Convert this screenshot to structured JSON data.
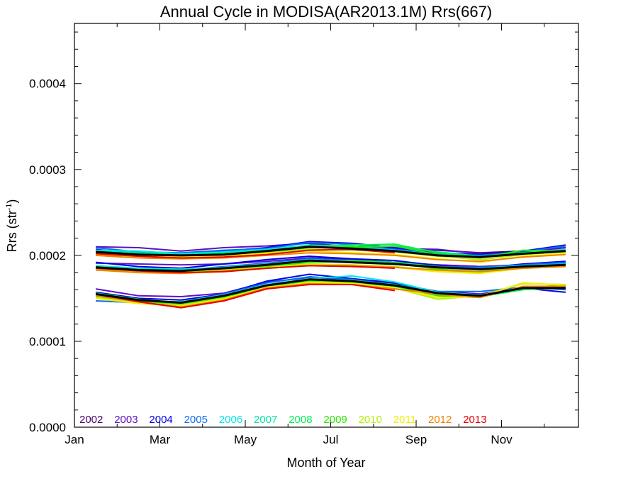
{
  "chart_data": {
    "type": "line",
    "title": "Annual Cycle in MODISA(AR2013.1M) Rrs(667)",
    "xlabel": "Month of Year",
    "ylabel_main": "Rrs (str",
    "ylabel_sup": "-1",
    "ylabel_close": ")",
    "xlim": [
      1,
      12.8
    ],
    "ylim": [
      0,
      0.00047
    ],
    "x_ticks": [
      {
        "x": 1,
        "label": "Jan"
      },
      {
        "x": 3,
        "label": "Mar"
      },
      {
        "x": 5,
        "label": "May"
      },
      {
        "x": 7,
        "label": "Jul"
      },
      {
        "x": 9,
        "label": "Sep"
      },
      {
        "x": 11,
        "label": "Nov"
      }
    ],
    "y_ticks": [
      {
        "y": 0.0,
        "label": "0.0000"
      },
      {
        "y": 0.0001,
        "label": "0.0001"
      },
      {
        "y": 0.0002,
        "label": "0.0002"
      },
      {
        "y": 0.0003,
        "label": "0.0003"
      },
      {
        "y": 0.0004,
        "label": "0.0004"
      }
    ],
    "legend_position": "bottom-left",
    "legend": [
      {
        "label": "2002",
        "color": "#4b006e"
      },
      {
        "label": "2003",
        "color": "#5a10c8"
      },
      {
        "label": "2004",
        "color": "#0000e6"
      },
      {
        "label": "2005",
        "color": "#0a6cf0"
      },
      {
        "label": "2006",
        "color": "#00e6e6"
      },
      {
        "label": "2007",
        "color": "#00e6a0"
      },
      {
        "label": "2008",
        "color": "#00f050"
      },
      {
        "label": "2009",
        "color": "#28e600"
      },
      {
        "label": "2010",
        "color": "#b4f000"
      },
      {
        "label": "2011",
        "color": "#f0f000"
      },
      {
        "label": "2012",
        "color": "#f08200"
      },
      {
        "label": "2013",
        "color": "#e60000"
      }
    ],
    "mean_color": "#000000",
    "x": [
      1.5,
      2.5,
      3.5,
      4.5,
      5.5,
      6.5,
      7.5,
      8.5,
      9.5,
      10.5,
      11.5,
      12.5
    ],
    "groups": [
      {
        "mean": [
          0.000204,
          0.000201,
          0.0002,
          0.000201,
          0.000205,
          0.00021,
          0.000208,
          0.000205,
          0.0002,
          0.000198,
          0.000202,
          0.000205
        ],
        "series": [
          {
            "year": "2002",
            "values": [
              null,
              null,
              null,
              null,
              null,
              0.000213,
              0.00021,
              0.000208,
              0.000206,
              0.000203,
              0.000205,
              0.000209
            ]
          },
          {
            "year": "2003",
            "values": [
              0.00021,
              0.000209,
              0.000205,
              0.000209,
              0.000211,
              0.000214,
              0.00021,
              0.000208,
              0.000207,
              0.000202,
              0.000203,
              0.000209
            ]
          },
          {
            "year": "2004",
            "values": [
              0.000207,
              0.000202,
              0.000201,
              0.000205,
              0.000209,
              0.000216,
              0.000214,
              0.000209,
              0.000203,
              0.000201,
              0.000205,
              0.000212
            ]
          },
          {
            "year": "2005",
            "values": [
              0.000209,
              0.000204,
              0.000203,
              0.000206,
              0.000208,
              0.000215,
              0.000213,
              0.000207,
              0.000202,
              0.0002,
              0.000204,
              0.000211
            ]
          },
          {
            "year": "2006",
            "values": [
              0.000206,
              0.000205,
              0.000202,
              0.000204,
              0.000207,
              0.000212,
              0.00021,
              0.000206,
              0.000201,
              0.000199,
              0.000203,
              0.000207
            ]
          },
          {
            "year": "2007",
            "values": [
              0.000205,
              0.000203,
              0.000201,
              0.000203,
              0.000206,
              0.000211,
              0.000209,
              0.000211,
              0.000204,
              0.000199,
              0.000202,
              0.000206
            ]
          },
          {
            "year": "2008",
            "values": [
              0.000204,
              0.000202,
              0.0002,
              0.000202,
              0.000205,
              0.000211,
              0.000212,
              0.000213,
              0.000203,
              0.000198,
              0.000203,
              0.000206
            ]
          },
          {
            "year": "2009",
            "values": [
              0.000203,
              0.000201,
              0.000199,
              0.000201,
              0.000204,
              0.000209,
              0.00021,
              0.000211,
              0.000201,
              0.000197,
              0.000206,
              0.000205
            ]
          },
          {
            "year": "2010",
            "values": [
              0.000202,
              0.0002,
              0.000199,
              0.0002,
              0.000203,
              0.000207,
              0.000206,
              0.000204,
              0.000199,
              0.000195,
              0.000201,
              0.000204
            ]
          },
          {
            "year": "2011",
            "values": [
              0.000201,
              0.000199,
              0.000198,
              0.000199,
              0.000202,
              0.000205,
              0.000203,
              0.000201,
              0.000196,
              0.000192,
              0.000199,
              0.000202
            ]
          },
          {
            "year": "2012",
            "values": [
              0.0002,
              0.000197,
              0.000196,
              0.000197,
              0.0002,
              0.000203,
              0.000202,
              0.0002,
              0.000195,
              0.000193,
              0.000198,
              0.000201
            ]
          },
          {
            "year": "2013",
            "values": [
              0.000202,
              0.000199,
              0.000197,
              0.000198,
              0.000201,
              0.000206,
              0.000207,
              0.000203,
              null,
              null,
              null,
              null
            ]
          }
        ]
      },
      {
        "mean": [
          0.000186,
          0.000183,
          0.000182,
          0.000185,
          0.000189,
          0.000194,
          0.000192,
          0.00019,
          0.000186,
          0.000184,
          0.000187,
          0.000189
        ],
        "series": [
          {
            "year": "2002",
            "values": [
              null,
              null,
              null,
              null,
              null,
              0.000197,
              0.000194,
              0.000192,
              0.000189,
              0.000187,
              0.000189,
              0.000191
            ]
          },
          {
            "year": "2003",
            "values": [
              0.000191,
              0.00019,
              0.000189,
              0.00019,
              0.000193,
              0.000197,
              0.000195,
              0.000192,
              0.000189,
              0.000187,
              0.000188,
              0.000191
            ]
          },
          {
            "year": "2004",
            "values": [
              0.000192,
              0.000187,
              0.000185,
              0.00019,
              0.000195,
              0.000199,
              0.000196,
              0.000194,
              0.000188,
              0.000185,
              0.00019,
              0.000193
            ]
          },
          {
            "year": "2005",
            "values": [
              0.000183,
              0.000182,
              0.000183,
              0.000187,
              0.000191,
              0.000196,
              0.000194,
              0.000191,
              0.000187,
              0.000186,
              0.000189,
              0.000192
            ]
          },
          {
            "year": "2006",
            "values": [
              0.000188,
              0.000185,
              0.000184,
              0.000186,
              0.00019,
              0.000195,
              0.000193,
              0.00019,
              0.000186,
              0.000185,
              0.000188,
              0.00019
            ]
          },
          {
            "year": "2007",
            "values": [
              0.000187,
              0.000184,
              0.000183,
              0.000185,
              0.000189,
              0.000194,
              0.000192,
              0.000191,
              0.000186,
              0.000184,
              0.000187,
              0.000189
            ]
          },
          {
            "year": "2008",
            "values": [
              0.000186,
              0.000183,
              0.000182,
              0.000184,
              0.000188,
              0.000193,
              0.000194,
              0.000192,
              0.000187,
              0.000183,
              0.000186,
              0.000188
            ]
          },
          {
            "year": "2009",
            "values": [
              0.000185,
              0.000182,
              0.000181,
              0.000183,
              0.000187,
              0.000192,
              0.000193,
              0.000191,
              0.000184,
              0.000181,
              0.000186,
              0.000188
            ]
          },
          {
            "year": "2010",
            "values": [
              0.000184,
              0.000181,
              0.00018,
              0.000183,
              0.000186,
              0.00019,
              0.000189,
              0.000187,
              0.000182,
              0.00018,
              0.000185,
              0.000187
            ]
          },
          {
            "year": "2011",
            "values": [
              0.000183,
              0.00018,
              0.000179,
              0.000181,
              0.000185,
              0.000189,
              0.000188,
              0.000186,
              0.000181,
              0.000179,
              0.000185,
              0.000187
            ]
          },
          {
            "year": "2012",
            "values": [
              0.000183,
              0.00018,
              0.000179,
              0.000182,
              0.000185,
              0.000188,
              0.000188,
              0.000186,
              0.000183,
              0.000181,
              0.000185,
              0.000187
            ]
          },
          {
            "year": "2013",
            "values": [
              0.000185,
              0.000182,
              0.00018,
              0.000181,
              0.000185,
              0.000188,
              0.000187,
              0.000185,
              null,
              null,
              null,
              null
            ]
          }
        ]
      },
      {
        "mean": [
          0.000155,
          0.000148,
          0.000145,
          0.000153,
          0.000165,
          0.000172,
          0.00017,
          0.000165,
          0.000156,
          0.000153,
          0.000162,
          0.000162
        ],
        "series": [
          {
            "year": "2002",
            "values": [
              null,
              null,
              null,
              null,
              null,
              0.000175,
              0.000172,
              0.000167,
              0.000158,
              0.000155,
              0.000163,
              0.000162
            ]
          },
          {
            "year": "2003",
            "values": [
              0.000161,
              0.000153,
              0.000152,
              0.000156,
              0.000169,
              0.000174,
              0.000172,
              0.000167,
              0.000158,
              0.000155,
              0.000163,
              0.000161
            ]
          },
          {
            "year": "2004",
            "values": [
              0.000157,
              0.00015,
              0.000148,
              0.000155,
              0.00017,
              0.000178,
              0.000173,
              0.000168,
              0.000157,
              0.000153,
              0.000162,
              0.000157
            ]
          },
          {
            "year": "2005",
            "values": [
              0.000147,
              0.000145,
              0.000146,
              0.000155,
              0.000168,
              0.000175,
              0.000172,
              0.000166,
              0.000158,
              0.000158,
              0.000163,
              0.00016
            ]
          },
          {
            "year": "2006",
            "values": [
              0.000152,
              0.000147,
              0.000146,
              0.000154,
              0.000166,
              0.000173,
              0.000176,
              0.000169,
              0.000157,
              0.000154,
              0.000161,
              0.000163
            ]
          },
          {
            "year": "2007",
            "values": [
              0.000154,
              0.000148,
              0.000145,
              0.000153,
              0.000165,
              0.000172,
              0.000171,
              0.000165,
              0.000156,
              0.000153,
              0.000161,
              0.000162
            ]
          },
          {
            "year": "2008",
            "values": [
              0.000156,
              0.000149,
              0.000144,
              0.000152,
              0.000164,
              0.000171,
              0.00017,
              0.000166,
              0.000155,
              0.000152,
              0.00016,
              0.000163
            ]
          },
          {
            "year": "2009",
            "values": [
              0.000153,
              0.000147,
              0.000143,
              0.000151,
              0.000163,
              0.00017,
              0.000169,
              0.000164,
              0.000153,
              0.000151,
              0.000163,
              0.000165
            ]
          },
          {
            "year": "2010",
            "values": [
              0.000151,
              0.000145,
              0.000142,
              0.00015,
              0.000162,
              0.000169,
              0.000168,
              0.000162,
              0.000149,
              0.000153,
              0.000167,
              0.000166
            ]
          },
          {
            "year": "2011",
            "values": [
              0.00015,
              0.000144,
              0.000141,
              0.000149,
              0.000163,
              0.000168,
              0.000167,
              0.000162,
              0.000151,
              0.000152,
              0.000168,
              0.000165
            ]
          },
          {
            "year": "2012",
            "values": [
              0.000153,
              0.000146,
              0.00014,
              0.000148,
              0.000162,
              0.000167,
              0.000166,
              0.000161,
              0.000155,
              0.000151,
              0.000164,
              0.000164
            ]
          },
          {
            "year": "2013",
            "values": [
              0.000155,
              0.000146,
              0.000139,
              0.000147,
              0.000161,
              0.000166,
              0.000166,
              0.000159,
              null,
              null,
              null,
              null
            ]
          }
        ]
      }
    ]
  }
}
